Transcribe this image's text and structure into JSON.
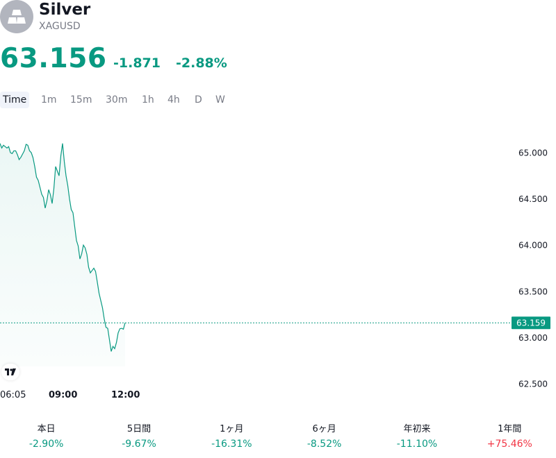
{
  "symbol": {
    "name": "Silver",
    "ticker": "XAGUSD",
    "logo_icon": "silver-bars-icon"
  },
  "quote": {
    "price": "63.156",
    "change": "-1.871",
    "change_pct": "-2.88%",
    "color": "#089981"
  },
  "timeframes": [
    "Time",
    "1m",
    "15m",
    "30m",
    "1h",
    "4h",
    "D",
    "W"
  ],
  "active_timeframe": "Time",
  "chart": {
    "price_axis": [
      "65.000",
      "64.500",
      "64.000",
      "63.500",
      "63.000",
      "62.500"
    ],
    "current_price_label": "63.159",
    "time_axis": [
      {
        "label": "06:05",
        "bold": false
      },
      {
        "label": "09:00",
        "bold": true
      },
      {
        "label": "12:00",
        "bold": true
      }
    ],
    "line_color": "#089981",
    "watermark_icon": "tradingview-logo-icon"
  },
  "chart_data": {
    "type": "area",
    "y_range": [
      62.5,
      65.0
    ],
    "x_range": [
      "06:05",
      "12:00"
    ],
    "last_value": 63.159,
    "series": [
      {
        "values": [
          65.1,
          65.08,
          65.05,
          65.0,
          65.02,
          64.98,
          64.95,
          65.02,
          65.08,
          65.0,
          64.85,
          64.7,
          64.55,
          64.4,
          64.6,
          64.45,
          64.85,
          64.75,
          65.1,
          64.75,
          64.5,
          64.35,
          64.05,
          63.85,
          64.0,
          63.9,
          63.7,
          63.75,
          63.6,
          63.4,
          63.2,
          63.1,
          62.85,
          62.88,
          63.05,
          63.1,
          63.16
        ]
      }
    ]
  },
  "performance": [
    {
      "label": "本日",
      "value": "-2.90%",
      "color": "#089981"
    },
    {
      "label": "5日間",
      "value": "-9.67%",
      "color": "#089981"
    },
    {
      "label": "1ヶ月",
      "value": "-16.31%",
      "color": "#089981"
    },
    {
      "label": "6ヶ月",
      "value": "-8.52%",
      "color": "#089981"
    },
    {
      "label": "年初来",
      "value": "-11.10%",
      "color": "#089981"
    },
    {
      "label": "1年間",
      "value": "+75.46%",
      "color": "#f23645"
    }
  ]
}
